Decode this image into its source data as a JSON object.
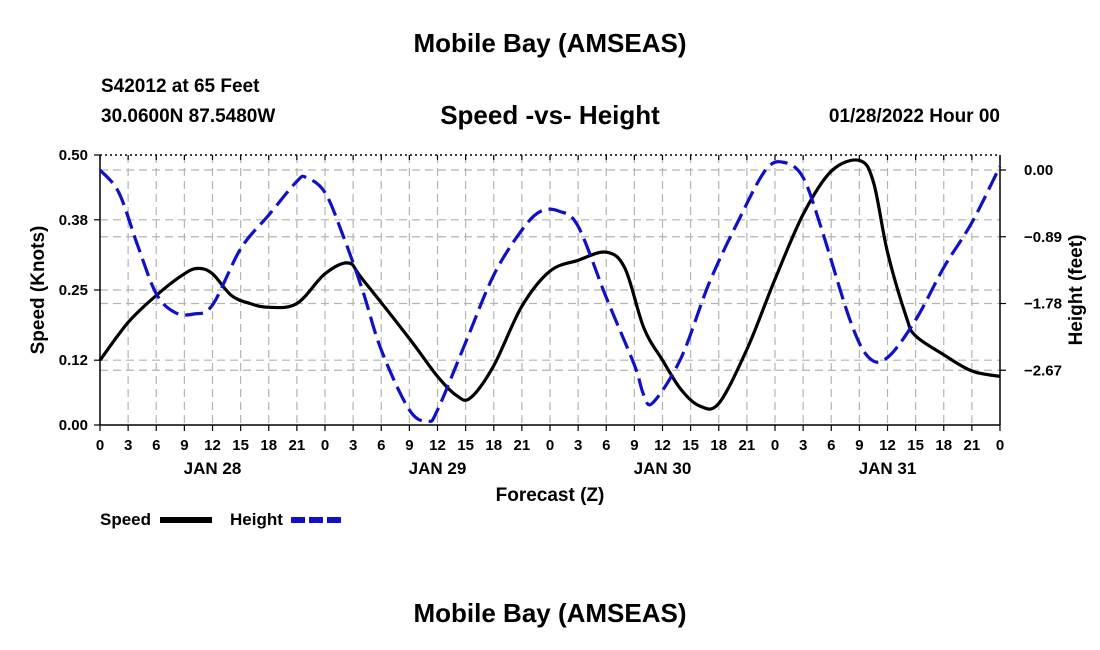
{
  "header": {
    "title": "Mobile Bay (AMSEAS)",
    "station": "S42012 at 65 Feet",
    "coords": "30.0600N  87.5480W",
    "subtitle": "Speed -vs- Height",
    "datetime": "01/28/2022 Hour 00"
  },
  "footer": {
    "title": "Mobile Bay (AMSEAS)"
  },
  "colors": {
    "speed": "#000000",
    "height": "#1010c8",
    "grid": "#b4b4b4"
  },
  "chart_data": {
    "type": "line",
    "xlabel": "Forecast (Z)",
    "ylabel": "Speed (Knots)",
    "y2label": "Height (feet)",
    "xlim": [
      0,
      96
    ],
    "ylim": [
      0,
      0.5
    ],
    "y2lim": [
      -3.4,
      0.2
    ],
    "yticks": [
      0,
      0.12,
      0.25,
      0.38,
      0.5
    ],
    "yticklabels": [
      "0.00",
      "0.12",
      "0.25",
      "0.38",
      "0.50"
    ],
    "y2ticks": [
      0,
      -0.89,
      -1.78,
      -2.67
    ],
    "y2ticklabels": [
      "0.00",
      "−0.89",
      "−1.78",
      "−2.67"
    ],
    "xticks": [
      0,
      3,
      6,
      9,
      12,
      15,
      18,
      21,
      24,
      27,
      30,
      33,
      36,
      39,
      42,
      45,
      48,
      51,
      54,
      57,
      60,
      63,
      66,
      69,
      72,
      75,
      78,
      81,
      84,
      87,
      90,
      93,
      96
    ],
    "xticklabels": [
      "0",
      "3",
      "6",
      "9",
      "12",
      "15",
      "18",
      "21",
      "0",
      "3",
      "6",
      "9",
      "12",
      "15",
      "18",
      "21",
      "0",
      "3",
      "6",
      "9",
      "12",
      "15",
      "18",
      "21",
      "0",
      "3",
      "6",
      "9",
      "12",
      "15",
      "18",
      "21",
      "0"
    ],
    "day_labels": [
      {
        "x": 12,
        "label": "JAN 28"
      },
      {
        "x": 36,
        "label": "JAN 29"
      },
      {
        "x": 60,
        "label": "JAN 30"
      },
      {
        "x": 84,
        "label": "JAN 31"
      }
    ],
    "legend": {
      "placement": "bottom-left",
      "labels": [
        "Speed",
        "Height"
      ]
    },
    "series": [
      {
        "name": "Speed",
        "axis": "left",
        "style": "solid",
        "points": [
          [
            0,
            0.12
          ],
          [
            3,
            0.19
          ],
          [
            6,
            0.24
          ],
          [
            9,
            0.28
          ],
          [
            10.5,
            0.29
          ],
          [
            12,
            0.28
          ],
          [
            14,
            0.24
          ],
          [
            16,
            0.225
          ],
          [
            18,
            0.218
          ],
          [
            21,
            0.225
          ],
          [
            24,
            0.28
          ],
          [
            26.5,
            0.3
          ],
          [
            28,
            0.27
          ],
          [
            33,
            0.16
          ],
          [
            36,
            0.09
          ],
          [
            38,
            0.055
          ],
          [
            39.5,
            0.05
          ],
          [
            42,
            0.11
          ],
          [
            45,
            0.22
          ],
          [
            48,
            0.285
          ],
          [
            51,
            0.305
          ],
          [
            54,
            0.32
          ],
          [
            56,
            0.29
          ],
          [
            58,
            0.18
          ],
          [
            60,
            0.12
          ],
          [
            62,
            0.065
          ],
          [
            64,
            0.035
          ],
          [
            66,
            0.04
          ],
          [
            69,
            0.14
          ],
          [
            72,
            0.27
          ],
          [
            75,
            0.39
          ],
          [
            78,
            0.47
          ],
          [
            81,
            0.49
          ],
          [
            82.5,
            0.45
          ],
          [
            84,
            0.32
          ],
          [
            86,
            0.2
          ],
          [
            87,
            0.165
          ],
          [
            90,
            0.13
          ],
          [
            93,
            0.1
          ],
          [
            96,
            0.09
          ]
        ]
      },
      {
        "name": "Height",
        "axis": "right",
        "style": "dashed",
        "points": [
          [
            0,
            0.0
          ],
          [
            2,
            -0.3
          ],
          [
            4,
            -1.0
          ],
          [
            6,
            -1.65
          ],
          [
            8,
            -1.9
          ],
          [
            10,
            -1.92
          ],
          [
            12,
            -1.8
          ],
          [
            15,
            -1.05
          ],
          [
            18,
            -0.6
          ],
          [
            21,
            -0.15
          ],
          [
            22,
            -0.1
          ],
          [
            24,
            -0.3
          ],
          [
            26,
            -0.9
          ],
          [
            28,
            -1.6
          ],
          [
            30,
            -2.4
          ],
          [
            33,
            -3.2
          ],
          [
            35,
            -3.35
          ],
          [
            36,
            -3.2
          ],
          [
            39,
            -2.3
          ],
          [
            42,
            -1.4
          ],
          [
            45,
            -0.8
          ],
          [
            47,
            -0.55
          ],
          [
            49,
            -0.55
          ],
          [
            51,
            -0.75
          ],
          [
            54,
            -1.7
          ],
          [
            57,
            -2.6
          ],
          [
            58,
            -3.0
          ],
          [
            59,
            -3.1
          ],
          [
            62,
            -2.5
          ],
          [
            65,
            -1.5
          ],
          [
            68,
            -0.7
          ],
          [
            71,
            0.0
          ],
          [
            73,
            0.1
          ],
          [
            75,
            -0.1
          ],
          [
            77,
            -0.8
          ],
          [
            80,
            -2.0
          ],
          [
            82,
            -2.5
          ],
          [
            84,
            -2.5
          ],
          [
            87,
            -2.0
          ],
          [
            90,
            -1.3
          ],
          [
            93,
            -0.7
          ],
          [
            96,
            0.05
          ]
        ]
      }
    ]
  }
}
